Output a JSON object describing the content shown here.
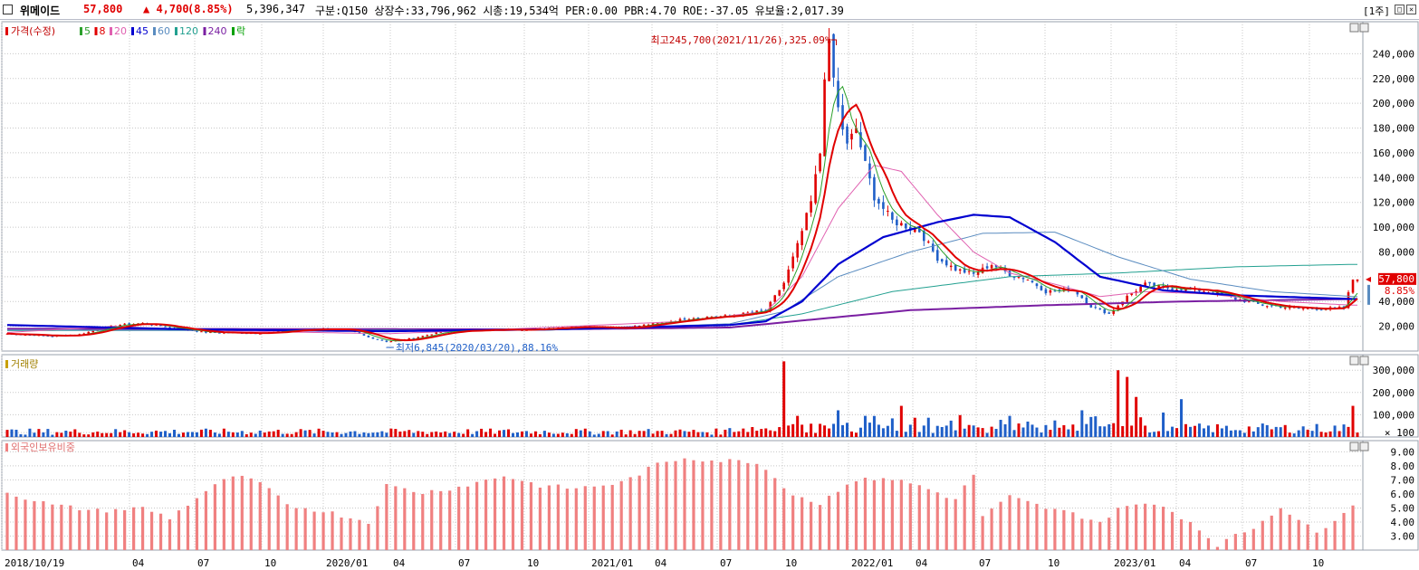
{
  "header": {
    "name": "위메이드",
    "price": "57,800",
    "change": "▲ 4,700",
    "change_pct": "(8.85%)",
    "volume": "5,396,347",
    "info": "구분:Q150 상장수:33,796,962 시총:19,534억 PER:0.00 PBR:4.70 ROE:-37.05 유보율:2,017.39",
    "period": "[1주]"
  },
  "price_panel": {
    "legend_title": "가격(수정)",
    "ma_labels": [
      "5",
      "8",
      "20",
      "45",
      "60",
      "120",
      "240",
      "락"
    ],
    "ma_colors": [
      "#2ca02c",
      "#e00000",
      "#e060b0",
      "#0000d0",
      "#5a8cc0",
      "#22a090",
      "#7a1fa2",
      "#00a000"
    ],
    "high_note": "최고245,700(2021/11/26),325.09%",
    "low_note": "최저6,845(2020/03/20),88.16%",
    "y_ticks": [
      "240,000",
      "220,000",
      "200,000",
      "180,000",
      "160,000",
      "140,000",
      "120,000",
      "100,000",
      "80,000",
      "60,000",
      "40,000",
      "20,000"
    ],
    "last_price_tag": "57,800",
    "last_pct_tag": "8.85%"
  },
  "volume_panel": {
    "legend_title": "거래량",
    "y_ticks": [
      "300,000",
      "200,000",
      "100,000",
      "× 100"
    ]
  },
  "foreign_panel": {
    "legend_title": "외국인보유비중",
    "y_ticks": [
      "9.00",
      "8.00",
      "7.00",
      "6.00",
      "5.00",
      "4.00",
      "3.00"
    ]
  },
  "x_axis": {
    "labels": [
      "2018/10/19",
      "04",
      "07",
      "10",
      "2020/01",
      "04",
      "07",
      "10",
      "2021/01",
      "04",
      "07",
      "10",
      "2022/01",
      "04",
      "07",
      "10",
      "2023/01",
      "04",
      "07",
      "10"
    ]
  },
  "colors": {
    "up": "#e00000",
    "down": "#1f5fc8",
    "foreign_bar": "#f08080",
    "grid": "#c8c8c8"
  },
  "chart_data": {
    "type": "candlestick",
    "price_anchors": [
      [
        0,
        14000
      ],
      [
        10,
        12000
      ],
      [
        16,
        13500
      ],
      [
        24,
        21000
      ],
      [
        30,
        22500
      ],
      [
        36,
        19000
      ],
      [
        44,
        15000
      ],
      [
        56,
        14500
      ],
      [
        64,
        17000
      ],
      [
        70,
        18000
      ],
      [
        76,
        16500
      ],
      [
        80,
        11000
      ],
      [
        84,
        7500
      ],
      [
        90,
        10500
      ],
      [
        96,
        15500
      ],
      [
        104,
        17000
      ],
      [
        116,
        17500
      ],
      [
        126,
        20000
      ],
      [
        136,
        18500
      ],
      [
        146,
        23500
      ],
      [
        152,
        27000
      ],
      [
        160,
        28500
      ],
      [
        168,
        33000
      ],
      [
        172,
        55000
      ],
      [
        175,
        85000
      ],
      [
        178,
        120000
      ],
      [
        180,
        160000
      ],
      [
        181,
        225000
      ],
      [
        182,
        245000
      ],
      [
        184,
        195000
      ],
      [
        186,
        165000
      ],
      [
        188,
        180000
      ],
      [
        190,
        150000
      ],
      [
        192,
        125000
      ],
      [
        196,
        105000
      ],
      [
        202,
        97000
      ],
      [
        206,
        75000
      ],
      [
        210,
        66000
      ],
      [
        214,
        62000
      ],
      [
        218,
        70000
      ],
      [
        222,
        62000
      ],
      [
        226,
        58000
      ],
      [
        230,
        48000
      ],
      [
        236,
        50000
      ],
      [
        240,
        36000
      ],
      [
        244,
        30000
      ],
      [
        248,
        44000
      ],
      [
        252,
        54000
      ],
      [
        256,
        51000
      ],
      [
        262,
        50000
      ],
      [
        268,
        47000
      ],
      [
        272,
        42000
      ],
      [
        278,
        37000
      ],
      [
        284,
        35000
      ],
      [
        290,
        34000
      ],
      [
        296,
        35000
      ],
      [
        298,
        57800
      ]
    ],
    "ma20_anchors": [
      [
        0,
        15000
      ],
      [
        24,
        20000
      ],
      [
        40,
        17000
      ],
      [
        60,
        15500
      ],
      [
        84,
        14000
      ],
      [
        100,
        16000
      ],
      [
        150,
        24000
      ],
      [
        168,
        32000
      ],
      [
        176,
        60000
      ],
      [
        184,
        115000
      ],
      [
        192,
        150000
      ],
      [
        198,
        145000
      ],
      [
        206,
        110000
      ],
      [
        214,
        80000
      ],
      [
        222,
        63000
      ],
      [
        232,
        54000
      ],
      [
        242,
        44000
      ],
      [
        252,
        48000
      ],
      [
        266,
        46000
      ],
      [
        282,
        40000
      ],
      [
        298,
        37000
      ]
    ],
    "ma45_anchors": [
      [
        0,
        21000
      ],
      [
        40,
        17500
      ],
      [
        84,
        16000
      ],
      [
        120,
        17500
      ],
      [
        160,
        21000
      ],
      [
        168,
        24000
      ],
      [
        176,
        40000
      ],
      [
        184,
        70000
      ],
      [
        194,
        92000
      ],
      [
        206,
        104000
      ],
      [
        214,
        110000
      ],
      [
        222,
        108000
      ],
      [
        232,
        88000
      ],
      [
        242,
        60000
      ],
      [
        256,
        49000
      ],
      [
        272,
        45000
      ],
      [
        298,
        42000
      ]
    ],
    "ma60_anchors": [
      [
        0,
        17000
      ],
      [
        84,
        16500
      ],
      [
        120,
        17000
      ],
      [
        160,
        22000
      ],
      [
        172,
        32000
      ],
      [
        184,
        60000
      ],
      [
        200,
        80000
      ],
      [
        216,
        95000
      ],
      [
        232,
        96000
      ],
      [
        246,
        76000
      ],
      [
        262,
        58000
      ],
      [
        280,
        48000
      ],
      [
        298,
        44000
      ]
    ],
    "ma120_anchors": [
      [
        0,
        16500
      ],
      [
        120,
        17000
      ],
      [
        160,
        21000
      ],
      [
        176,
        30000
      ],
      [
        196,
        48000
      ],
      [
        222,
        60000
      ],
      [
        246,
        63000
      ],
      [
        272,
        68000
      ],
      [
        298,
        70000
      ]
    ],
    "ma240_anchors": [
      [
        0,
        18000
      ],
      [
        120,
        17500
      ],
      [
        160,
        19000
      ],
      [
        180,
        26000
      ],
      [
        200,
        33000
      ],
      [
        230,
        37000
      ],
      [
        260,
        40000
      ],
      [
        298,
        42000
      ]
    ],
    "y_range": [
      0,
      260000
    ],
    "volume_range": [
      0,
      370000
    ],
    "foreign_range": [
      2.0,
      9.8
    ],
    "volume_spikes": [
      [
        172,
        340000
      ],
      [
        175,
        95000
      ],
      [
        184,
        120000
      ],
      [
        190,
        95000
      ],
      [
        198,
        140000
      ],
      [
        210,
        30000
      ],
      [
        222,
        95000
      ],
      [
        238,
        120000
      ],
      [
        240,
        90000
      ],
      [
        246,
        300000
      ],
      [
        248,
        270000
      ],
      [
        250,
        180000
      ],
      [
        256,
        110000
      ],
      [
        260,
        170000
      ],
      [
        298,
        140000
      ]
    ],
    "foreign_anchors": [
      [
        0,
        6.1
      ],
      [
        10,
        5.2
      ],
      [
        20,
        4.8
      ],
      [
        30,
        5.0
      ],
      [
        36,
        4.3
      ],
      [
        44,
        6.2
      ],
      [
        50,
        7.3
      ],
      [
        56,
        6.8
      ],
      [
        62,
        5.2
      ],
      [
        70,
        4.8
      ],
      [
        80,
        4.0
      ],
      [
        84,
        6.6
      ],
      [
        92,
        6.1
      ],
      [
        100,
        6.5
      ],
      [
        110,
        7.3
      ],
      [
        118,
        6.6
      ],
      [
        126,
        6.4
      ],
      [
        136,
        6.8
      ],
      [
        144,
        8.1
      ],
      [
        150,
        8.6
      ],
      [
        156,
        8.4
      ],
      [
        166,
        8.3
      ],
      [
        174,
        6.0
      ],
      [
        180,
        5.3
      ],
      [
        186,
        6.8
      ],
      [
        194,
        7.2
      ],
      [
        202,
        6.6
      ],
      [
        210,
        5.6
      ],
      [
        214,
        7.4
      ],
      [
        216,
        4.4
      ],
      [
        222,
        5.8
      ],
      [
        230,
        5.0
      ],
      [
        236,
        4.6
      ],
      [
        242,
        4.0
      ],
      [
        248,
        5.3
      ],
      [
        256,
        5.1
      ],
      [
        262,
        4.0
      ],
      [
        268,
        2.4
      ],
      [
        276,
        3.6
      ],
      [
        282,
        5.1
      ],
      [
        290,
        3.2
      ],
      [
        298,
        5.3
      ]
    ]
  }
}
